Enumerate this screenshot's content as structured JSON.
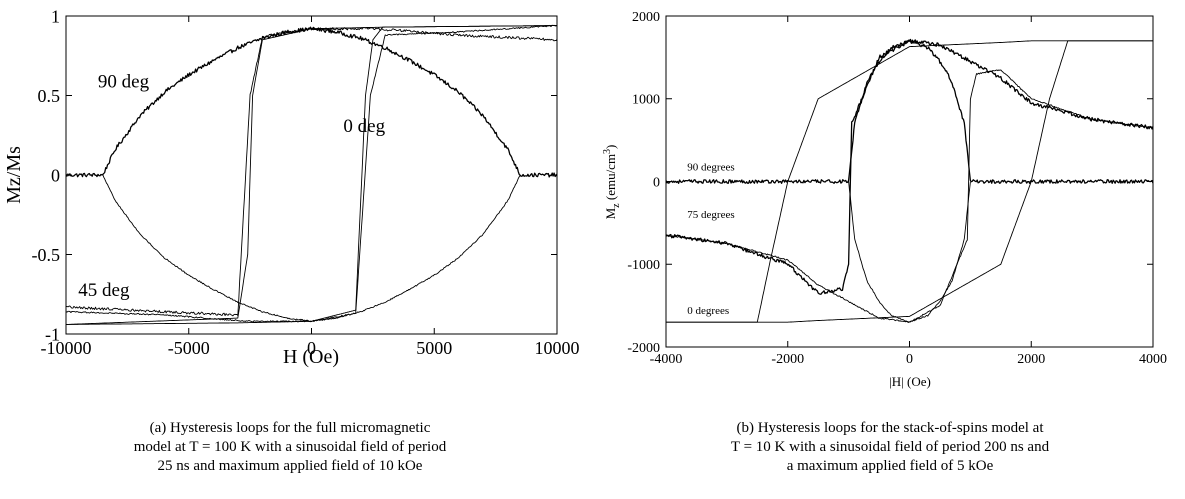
{
  "chart_data": [
    {
      "type": "line",
      "panel": "a",
      "ylabel": "Mz/Ms",
      "xlabel": "H (Oe)",
      "xlim": [
        -10000,
        10000
      ],
      "ylim": [
        -1,
        1
      ],
      "xticks": [
        -10000,
        -5000,
        0,
        5000,
        10000
      ],
      "xtick_labels": [
        "-10000",
        "-5000",
        "0",
        "5000",
        "10000"
      ],
      "yticks": [
        -1,
        -0.5,
        0,
        0.5,
        1
      ],
      "ytick_labels": [
        "-1",
        "-0.5",
        "0",
        "0.5",
        "1"
      ],
      "grid": false,
      "annotations": [
        {
          "text": "90 deg",
          "x": -8700,
          "y": 0.55
        },
        {
          "text": "0 deg",
          "x": 1300,
          "y": 0.27
        },
        {
          "text": "45 deg",
          "x": -9500,
          "y": -0.76
        }
      ],
      "series": [
        {
          "curve": "90 deg loop (upper branch)",
          "noise": 0.012,
          "x": [
            -10000,
            -8500,
            -8000,
            -7000,
            -6000,
            -5000,
            -4000,
            -3000,
            -2000,
            -1000,
            0,
            1000,
            2000,
            3000,
            4000,
            5000,
            6000,
            7000,
            8000,
            8500,
            10000
          ],
          "y": [
            0,
            0,
            0.16,
            0.37,
            0.52,
            0.63,
            0.72,
            0.8,
            0.86,
            0.9,
            0.92,
            0.9,
            0.86,
            0.8,
            0.72,
            0.63,
            0.52,
            0.37,
            0.16,
            0,
            0
          ]
        },
        {
          "curve": "90 deg loop (lower branch)",
          "noise": 0.004,
          "x": [
            -8500,
            -8000,
            -7000,
            -6000,
            -5000,
            -4000,
            -3000,
            -2000,
            -1000,
            0,
            1000,
            2000,
            3000,
            4000,
            5000,
            6000,
            7000,
            8000,
            8500
          ],
          "y": [
            0,
            -0.16,
            -0.37,
            -0.52,
            -0.63,
            -0.72,
            -0.8,
            -0.86,
            -0.9,
            -0.92,
            -0.9,
            -0.86,
            -0.8,
            -0.72,
            -0.63,
            -0.52,
            -0.37,
            -0.16,
            0
          ]
        },
        {
          "curve": "45 deg loop (descending branch)",
          "noise": 0.008,
          "x": [
            10000,
            6000,
            3500,
            2500,
            1500,
            0,
            -2000,
            -2500,
            -3000,
            -6000,
            -10000
          ],
          "y": [
            0.85,
            0.88,
            0.91,
            0.92,
            0.92,
            0.92,
            0.87,
            0.5,
            -0.88,
            -0.86,
            -0.83
          ]
        },
        {
          "curve": "45 deg loop (ascending branch)",
          "noise": 0.004,
          "x": [
            -10000,
            -6000,
            -3500,
            -2500,
            -1500,
            0,
            1800,
            2400,
            3000,
            6000,
            10000
          ],
          "y": [
            -0.86,
            -0.88,
            -0.91,
            -0.92,
            -0.92,
            -0.92,
            -0.87,
            0.5,
            0.88,
            0.9,
            0.94
          ]
        },
        {
          "curve": "0 deg loop (descending branch)",
          "noise": 0,
          "x": [
            10000,
            3000,
            0,
            -2000,
            -2400,
            -2600,
            -3000,
            -10000
          ],
          "y": [
            0.94,
            0.93,
            0.92,
            0.85,
            0.5,
            -0.5,
            -0.9,
            -0.94
          ]
        },
        {
          "curve": "0 deg loop (ascending branch)",
          "noise": 0,
          "x": [
            -10000,
            -3000,
            0,
            1800,
            2200,
            2500,
            2900,
            10000
          ],
          "y": [
            -0.94,
            -0.93,
            -0.92,
            -0.85,
            0.5,
            0.85,
            0.93,
            0.94
          ]
        }
      ]
    },
    {
      "type": "line",
      "panel": "b",
      "ylabel_main": "M",
      "ylabel_sub": "z",
      "ylabel_rest": " (emu/cm",
      "ylabel_sup": "3",
      "ylabel_close": ")",
      "xlabel": "|H| (Oe)",
      "xlim": [
        -4000,
        4000
      ],
      "ylim": [
        -2000,
        2000
      ],
      "xticks": [
        -4000,
        -2000,
        0,
        2000,
        4000
      ],
      "xtick_labels": [
        "-4000",
        "-2000",
        "0",
        "2000",
        "4000"
      ],
      "yticks": [
        -2000,
        -1000,
        0,
        1000,
        2000
      ],
      "ytick_labels": [
        "-2000",
        "-1000",
        "0",
        "1000",
        "2000"
      ],
      "grid": false,
      "annotations": [
        {
          "text": "90 degrees",
          "x": -3650,
          "y": 130
        },
        {
          "text": "75 degrees",
          "x": -3650,
          "y": -440
        },
        {
          "text": "0 degrees",
          "x": -3650,
          "y": -1600
        }
      ],
      "series": [
        {
          "curve": "0 degrees loop (descending branch)",
          "noise": 0,
          "x": [
            4000,
            2800,
            2600,
            2300,
            2000,
            1500,
            0,
            -1500,
            -2000,
            -2300,
            -2500,
            -2700,
            -4000
          ],
          "y": [
            1700,
            1700,
            1700,
            1000,
            0,
            -1000,
            -1630,
            -1680,
            -1700,
            -1700,
            -1700,
            -1700,
            -1700
          ]
        },
        {
          "curve": "0 degrees loop (ascending branch)",
          "noise": 0,
          "x": [
            -4000,
            -2700,
            -2500,
            -2300,
            -2000,
            -1500,
            0,
            1500,
            2000,
            2300,
            2600,
            2800,
            4000
          ],
          "y": [
            -1700,
            -1700,
            -1700,
            -1000,
            0,
            1000,
            1630,
            1680,
            1700,
            1700,
            1700,
            1700,
            1700
          ]
        },
        {
          "curve": "90 degrees loop (upper branch)",
          "noise": 22,
          "x": [
            -4000,
            -1000,
            -900,
            -700,
            -500,
            -300,
            0,
            300,
            500,
            700,
            900,
            1000,
            4000
          ],
          "y": [
            0,
            0,
            700,
            1200,
            1450,
            1620,
            1700,
            1620,
            1450,
            1200,
            700,
            0,
            0
          ]
        },
        {
          "curve": "90 degrees loop (lower branch)",
          "noise": 8,
          "x": [
            -1000,
            -900,
            -700,
            -500,
            -300,
            0,
            300,
            500,
            700,
            900,
            1000
          ],
          "y": [
            0,
            -700,
            -1200,
            -1450,
            -1620,
            -1700,
            -1620,
            -1450,
            -1200,
            -700,
            0
          ]
        },
        {
          "curve": "75 degrees loop (descending branch)",
          "noise": 22,
          "x": [
            4000,
            3000,
            2000,
            1500,
            1000,
            500,
            0,
            -500,
            -950,
            -1000,
            -1100,
            -1500,
            -2000,
            -3000,
            -4000
          ],
          "y": [
            650,
            750,
            950,
            1250,
            1450,
            1650,
            1700,
            1500,
            700,
            -1000,
            -1300,
            -1350,
            -1000,
            -750,
            -650
          ]
        },
        {
          "curve": "75 degrees loop (ascending branch)",
          "noise": 8,
          "x": [
            -4000,
            -3000,
            -2000,
            -1500,
            -1000,
            -500,
            0,
            500,
            950,
            1000,
            1100,
            1500,
            2000,
            3000,
            4000
          ],
          "y": [
            -650,
            -750,
            -950,
            -1250,
            -1450,
            -1650,
            -1700,
            -1500,
            -700,
            1000,
            1300,
            1350,
            1000,
            750,
            650
          ]
        }
      ]
    }
  ],
  "captions": {
    "a": {
      "line1": "(a) Hysteresis loops for the full micromagnetic",
      "line2": "model at T = 100 K with a sinusoidal field of period",
      "line3": "25 ns and maximum applied field of 10 kOe"
    },
    "b": {
      "line1": "(b) Hysteresis loops for the stack-of-spins model at",
      "line2": "T = 10 K with a sinusoidal field of period 200 ns and",
      "line3": "a maximum applied field of 5 kOe"
    }
  }
}
